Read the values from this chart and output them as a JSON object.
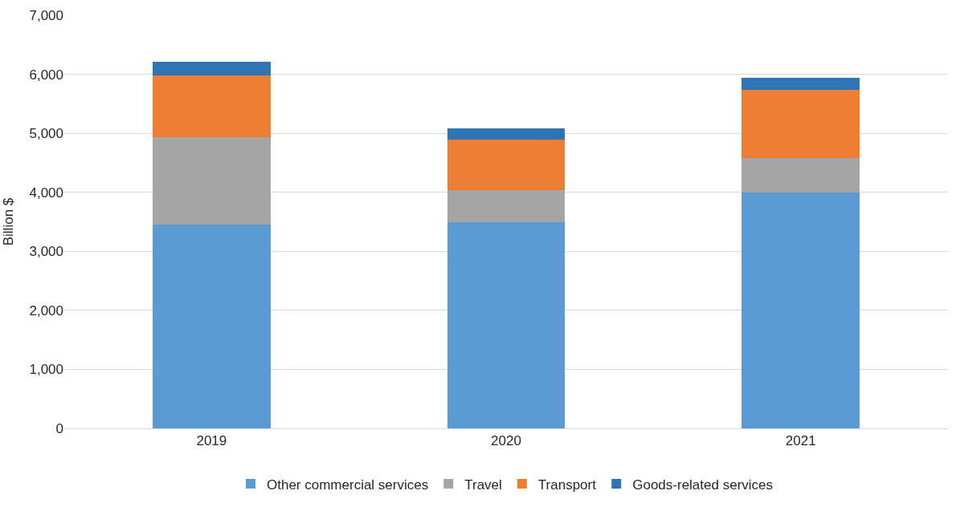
{
  "chart_data": {
    "type": "bar",
    "stacked": true,
    "ylabel": "Billion $",
    "categories": [
      "2019",
      "2020",
      "2021"
    ],
    "series": [
      {
        "name": "Other commercial services",
        "color": "#5b9bd5",
        "values": [
          3450,
          3490,
          3990
        ]
      },
      {
        "name": "Travel",
        "color": "#a5a5a5",
        "values": [
          1480,
          550,
          590
        ]
      },
      {
        "name": "Transport",
        "color": "#ed7d31",
        "values": [
          1055,
          850,
          1150
        ]
      },
      {
        "name": "Goods-related services",
        "color": "#2e75b6",
        "values": [
          230,
          200,
          215
        ]
      }
    ],
    "ylim": [
      0,
      7000
    ],
    "yticks": [
      {
        "value": 0,
        "label": "0"
      },
      {
        "value": 1000,
        "label": "1,000"
      },
      {
        "value": 2000,
        "label": "2,000"
      },
      {
        "value": 3000,
        "label": "3,000"
      },
      {
        "value": 4000,
        "label": "4,000"
      },
      {
        "value": 5000,
        "label": "5,000"
      },
      {
        "value": 6000,
        "label": "6,000"
      },
      {
        "value": 7000,
        "label": "7,000"
      }
    ],
    "grid": "y",
    "legend": "bottom"
  }
}
